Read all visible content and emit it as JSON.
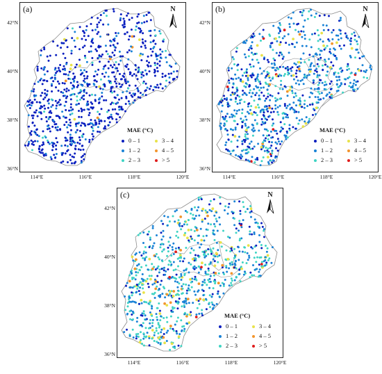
{
  "colors": {
    "class0": "#0a1fbf",
    "class1": "#1a83d6",
    "class2": "#3fd4c4",
    "class3": "#e8e24a",
    "class4": "#f2952c",
    "class5": "#e01b1b",
    "boundary": "#8a8a8a"
  },
  "legend": {
    "title": "MAE (°C)",
    "items": [
      {
        "label": "0 – 1",
        "color_key": "class0"
      },
      {
        "label": "1 – 2",
        "color_key": "class1"
      },
      {
        "label": "2 – 3",
        "color_key": "class2"
      },
      {
        "label": "3 – 4",
        "color_key": "class3"
      },
      {
        "label": "4 – 5",
        "color_key": "class4"
      },
      {
        "label": "> 5",
        "color_key": "class5"
      }
    ]
  },
  "north_label": "N",
  "axes": {
    "lat_labels": [
      "42°N",
      "40°N",
      "38°N",
      "36°N"
    ],
    "lon_labels": [
      "114°E",
      "116°E",
      "118°E",
      "120°E"
    ],
    "lat_range": [
      35.9,
      42.7
    ],
    "lon_range": [
      113.3,
      120.1
    ]
  },
  "panels": [
    {
      "label": "(a)",
      "mix": [
        0.74,
        0.2,
        0.045,
        0.01,
        0.005,
        0.0
      ]
    },
    {
      "label": "(b)",
      "mix": [
        0.26,
        0.5,
        0.19,
        0.03,
        0.012,
        0.008
      ]
    },
    {
      "label": "(c)",
      "mix": [
        0.1,
        0.4,
        0.39,
        0.07,
        0.03,
        0.01
      ]
    }
  ]
}
